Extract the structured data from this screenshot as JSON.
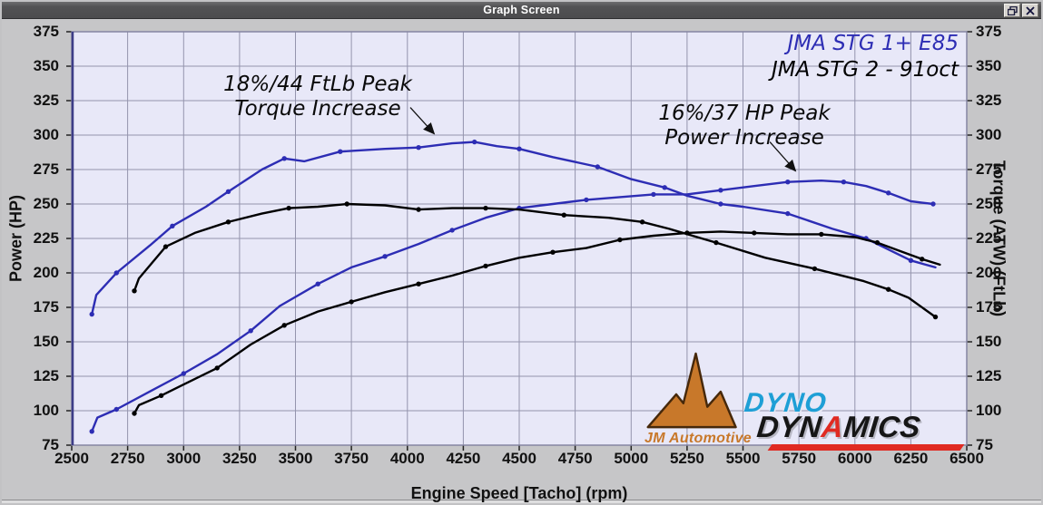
{
  "window": {
    "title": "Graph Screen",
    "buttons": {
      "restore": "restore-window",
      "close": "close-window"
    }
  },
  "chart_data": {
    "type": "line",
    "xlabel": "Engine Speed [Tacho] (rpm)",
    "ylabel_left": "Power (HP)",
    "ylabel_right": "Torque (ATW) (FtLb)",
    "xlim": [
      2500,
      6500
    ],
    "ylim": [
      75,
      375
    ],
    "x_ticks": [
      2500,
      2750,
      3000,
      3250,
      3500,
      3750,
      4000,
      4250,
      4500,
      4750,
      5000,
      5250,
      5500,
      5750,
      6000,
      6250,
      6500
    ],
    "y_ticks": [
      75,
      100,
      125,
      150,
      175,
      200,
      225,
      250,
      275,
      300,
      325,
      350,
      375
    ],
    "grid": true,
    "grid_color": "#9494ad",
    "plot_bg": "#e8e8f8",
    "legend_position": "top-right",
    "legend": [
      {
        "label": "JMA STG 1+ E85",
        "color": "#2d2db4"
      },
      {
        "label": "JMA STG 2 - 91oct",
        "color": "#000000"
      }
    ],
    "annotations": [
      {
        "lines": [
          "18%/44 FtLb Peak",
          "Torque Increase"
        ],
        "arrow": {
          "from": [
            4013,
            320
          ],
          "to": [
            4120,
            301
          ]
        }
      },
      {
        "lines": [
          "16%/37 HP Peak",
          "Power Increase"
        ],
        "arrow": {
          "from": [
            5620,
            295
          ],
          "to": [
            5735,
            274
          ]
        }
      }
    ],
    "series": [
      {
        "name": "JMA STG 1+ E85 Torque",
        "color": "#2d2db4",
        "points": [
          [
            2590,
            170
          ],
          [
            2610,
            184
          ],
          [
            2700,
            200
          ],
          [
            2850,
            220
          ],
          [
            2950,
            234
          ],
          [
            3100,
            248
          ],
          [
            3200,
            259
          ],
          [
            3350,
            275
          ],
          [
            3450,
            283
          ],
          [
            3540,
            281
          ],
          [
            3700,
            288
          ],
          [
            3900,
            290
          ],
          [
            4050,
            291
          ],
          [
            4200,
            294
          ],
          [
            4300,
            295
          ],
          [
            4400,
            292
          ],
          [
            4500,
            290
          ],
          [
            4650,
            284
          ],
          [
            4850,
            277
          ],
          [
            5000,
            268
          ],
          [
            5150,
            262
          ],
          [
            5250,
            256
          ],
          [
            5400,
            250
          ],
          [
            5500,
            248
          ],
          [
            5700,
            243
          ],
          [
            5900,
            232
          ],
          [
            6050,
            225
          ],
          [
            6150,
            217
          ],
          [
            6250,
            209
          ],
          [
            6360,
            204
          ]
        ]
      },
      {
        "name": "JMA STG 1+ E85 Power",
        "color": "#2d2db4",
        "points": [
          [
            2590,
            85
          ],
          [
            2615,
            95
          ],
          [
            2700,
            101
          ],
          [
            2850,
            114
          ],
          [
            3000,
            127
          ],
          [
            3150,
            141
          ],
          [
            3300,
            158
          ],
          [
            3430,
            176
          ],
          [
            3600,
            192
          ],
          [
            3750,
            204
          ],
          [
            3900,
            212
          ],
          [
            4050,
            221
          ],
          [
            4200,
            231
          ],
          [
            4350,
            240
          ],
          [
            4500,
            247
          ],
          [
            4650,
            250
          ],
          [
            4800,
            253
          ],
          [
            4950,
            255
          ],
          [
            5100,
            257
          ],
          [
            5250,
            257
          ],
          [
            5400,
            260
          ],
          [
            5550,
            263
          ],
          [
            5700,
            266
          ],
          [
            5850,
            267
          ],
          [
            5950,
            266
          ],
          [
            6050,
            263
          ],
          [
            6150,
            258
          ],
          [
            6250,
            252
          ],
          [
            6350,
            250
          ]
        ]
      },
      {
        "name": "JMA STG 2 - 91oct Torque",
        "color": "#000000",
        "points": [
          [
            2780,
            187
          ],
          [
            2800,
            196
          ],
          [
            2920,
            219
          ],
          [
            3050,
            229
          ],
          [
            3200,
            237
          ],
          [
            3350,
            243
          ],
          [
            3470,
            247
          ],
          [
            3600,
            248
          ],
          [
            3730,
            250
          ],
          [
            3900,
            249
          ],
          [
            4050,
            246
          ],
          [
            4200,
            247
          ],
          [
            4350,
            247
          ],
          [
            4500,
            246
          ],
          [
            4700,
            242
          ],
          [
            4900,
            240
          ],
          [
            5050,
            237
          ],
          [
            5170,
            232
          ],
          [
            5380,
            222
          ],
          [
            5600,
            211
          ],
          [
            5820,
            203
          ],
          [
            6040,
            194
          ],
          [
            6150,
            188
          ],
          [
            6240,
            182
          ],
          [
            6360,
            168
          ]
        ]
      },
      {
        "name": "JMA STG 2 - 91oct Power",
        "color": "#000000",
        "points": [
          [
            2780,
            98
          ],
          [
            2800,
            104
          ],
          [
            2900,
            111
          ],
          [
            3000,
            119
          ],
          [
            3150,
            131
          ],
          [
            3300,
            148
          ],
          [
            3450,
            162
          ],
          [
            3600,
            172
          ],
          [
            3750,
            179
          ],
          [
            3900,
            186
          ],
          [
            4050,
            192
          ],
          [
            4200,
            198
          ],
          [
            4350,
            205
          ],
          [
            4500,
            211
          ],
          [
            4650,
            215
          ],
          [
            4800,
            218
          ],
          [
            4950,
            224
          ],
          [
            5100,
            227
          ],
          [
            5250,
            229
          ],
          [
            5400,
            230
          ],
          [
            5550,
            229
          ],
          [
            5700,
            228
          ],
          [
            5850,
            228
          ],
          [
            6000,
            226
          ],
          [
            6100,
            222
          ],
          [
            6200,
            216
          ],
          [
            6300,
            210
          ],
          [
            6380,
            206
          ]
        ]
      }
    ]
  },
  "logo": {
    "jm_text": "JM Automotive",
    "jm_color": "#c8782a",
    "dyno_text": "DYNO",
    "dyno_color": "#1e9fd6",
    "dynamics_pre": "DYN",
    "dynamics_a": "A",
    "dynamics_post": "MICS",
    "accent_red": "#e02a22"
  }
}
